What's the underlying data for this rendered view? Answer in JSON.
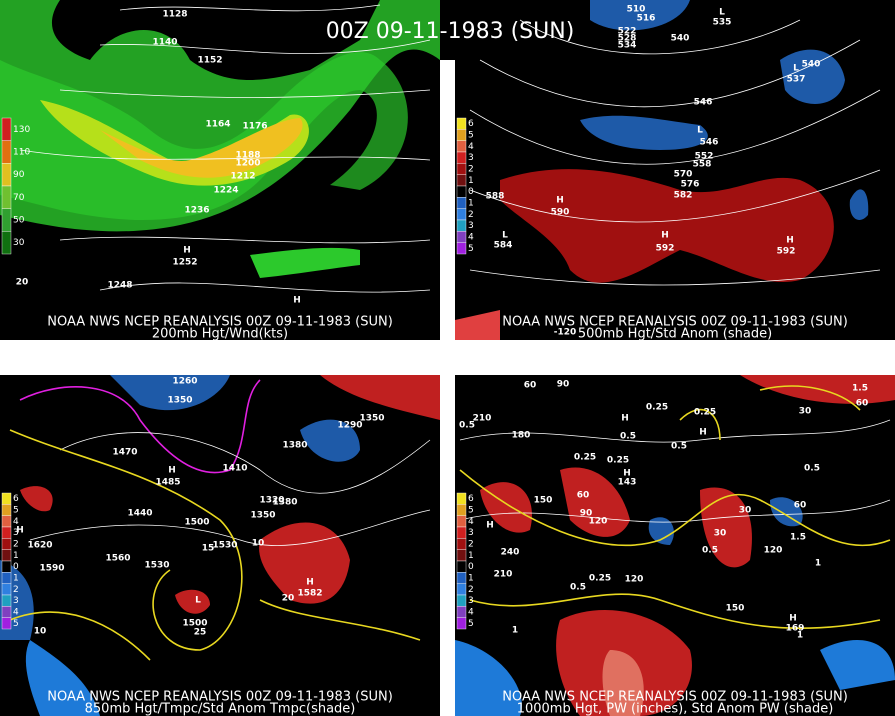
{
  "title": "00Z 09-11-1983 (SUN)",
  "panels": [
    {
      "caption": "NOAA NWS NCEP REANALYSIS 00Z 09-11-1983 (SUN)",
      "subtitle": "200mb Hgt/Wnd(kts)",
      "colorbar": [
        "130",
        "110",
        "90",
        "70",
        "50",
        "30"
      ],
      "labels": [
        "1128",
        "1140",
        "1152",
        "1164",
        "1176",
        "1188",
        "1200",
        "1212",
        "1224",
        "1236",
        "H",
        "1252",
        "1248",
        "20",
        "H"
      ]
    },
    {
      "caption": "NOAA NWS NCEP REANALYSIS 00Z 09-11-1983 (SUN)",
      "subtitle": "500mb Hgt/Std Anom (shade)",
      "colorbar": [
        "6",
        "5",
        "4",
        "3",
        "2",
        "1",
        "0",
        "1",
        "2",
        "3",
        "4",
        "5"
      ],
      "labels": [
        "510",
        "516",
        "522",
        "528",
        "534",
        "540",
        "L",
        "535",
        "540",
        "L",
        "537",
        "546",
        "L",
        "546",
        "552",
        "558",
        "570",
        "576",
        "582",
        "588",
        "H",
        "590",
        "L",
        "584",
        "H",
        "592",
        "H",
        "592",
        "-120"
      ]
    },
    {
      "caption": "NOAA NWS NCEP REANALYSIS 00Z 09-11-1983 (SUN)",
      "subtitle": "850mb Hgt/Tmpc/Std Anom Tmpc(shade)",
      "colorbar": [
        "6",
        "5",
        "4",
        "3",
        "2",
        "1",
        "0",
        "1",
        "2",
        "3",
        "4",
        "5"
      ],
      "labels": [
        "1260",
        "1350",
        "1380",
        "1290",
        "1350",
        "1470",
        "H",
        "1485",
        "1410",
        "1440",
        "1500",
        "1530",
        "1560",
        "1590",
        "H",
        "1620",
        "1530",
        "L",
        "1500",
        "H",
        "1582",
        "10",
        "15",
        "20",
        "25",
        "10",
        "1350",
        "1380",
        "1320"
      ]
    },
    {
      "caption": "NOAA NWS NCEP REANALYSIS 00Z 09-11-1983 (SUN)",
      "subtitle": "1000mb Hgt, PW (inches), Std Anom PW (shade)",
      "colorbar": [
        "6",
        "5",
        "4",
        "3",
        "2",
        "1",
        "0",
        "1",
        "2",
        "3",
        "4",
        "5"
      ],
      "labels": [
        "60",
        "90",
        "210",
        "0.5",
        "180",
        "H",
        "0.5",
        "0.25",
        "0.25",
        "H",
        "0.5",
        "0.25",
        "0.25",
        "H",
        "143",
        "150",
        "60",
        "90",
        "120",
        "H",
        "240",
        "210",
        "0.5",
        "0.25",
        "120",
        "150",
        "1",
        "1",
        "30",
        "60",
        "1.5",
        "1.5",
        "1",
        "0.5",
        "120",
        "60",
        "H",
        "169",
        "0.5",
        "30",
        "30"
      ]
    }
  ]
}
